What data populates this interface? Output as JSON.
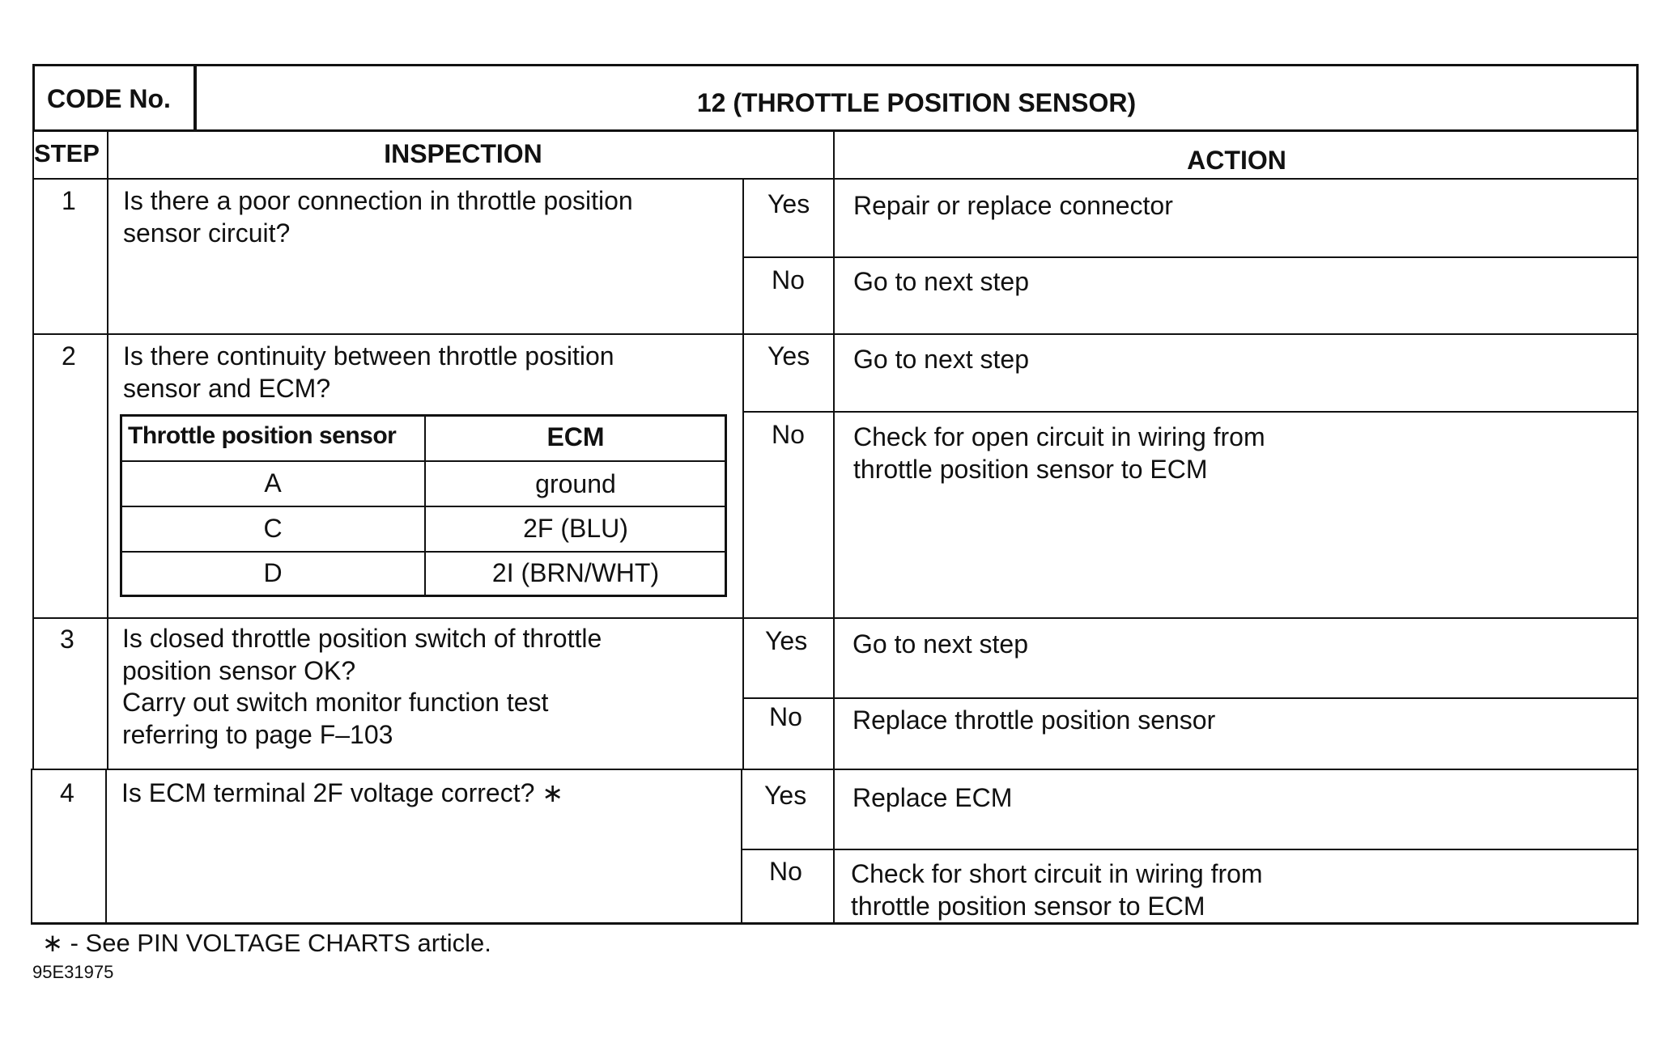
{
  "header": {
    "code_label": "CODE No.",
    "code_title": "12 (THROTTLE POSITION SENSOR)"
  },
  "columns": {
    "step": "STEP",
    "inspection": "INSPECTION",
    "action": "ACTION"
  },
  "steps": [
    {
      "step": "1",
      "inspection": "Is there a poor connection in throttle position\nsensor circuit?",
      "yes": "Yes",
      "yes_action": "Repair or replace connector",
      "no": "No",
      "no_action": "Go to next step"
    },
    {
      "step": "2",
      "inspection": "Is there continuity between throttle position\nsensor and ECM?",
      "yes": "Yes",
      "yes_action": "Go to next step",
      "no": "No",
      "no_action": "Check for open circuit in wiring from\nthrottle position sensor to ECM",
      "sub_table": {
        "headers": [
          "Throttle position sensor",
          "ECM"
        ],
        "rows": [
          [
            "A",
            "ground"
          ],
          [
            "C",
            "2F (BLU)"
          ],
          [
            "D",
            "2I (BRN/WHT)"
          ]
        ]
      }
    },
    {
      "step": "3",
      "inspection": "Is closed throttle position switch of throttle\nposition sensor OK?\nCarry out switch monitor function test\nreferring to page F–103",
      "yes": "Yes",
      "yes_action": "Go to next step",
      "no": "No",
      "no_action": "Replace throttle position sensor"
    },
    {
      "step": "4",
      "inspection": "Is ECM terminal 2F voltage correct?  ∗",
      "yes": "Yes",
      "yes_action": "Replace ECM",
      "no": "No",
      "no_action": "Check for short circuit in wiring from\nthrottle position sensor to ECM"
    }
  ],
  "footnote": "∗  - See PIN VOLTAGE CHARTS article.",
  "figure_code": "95E31975"
}
